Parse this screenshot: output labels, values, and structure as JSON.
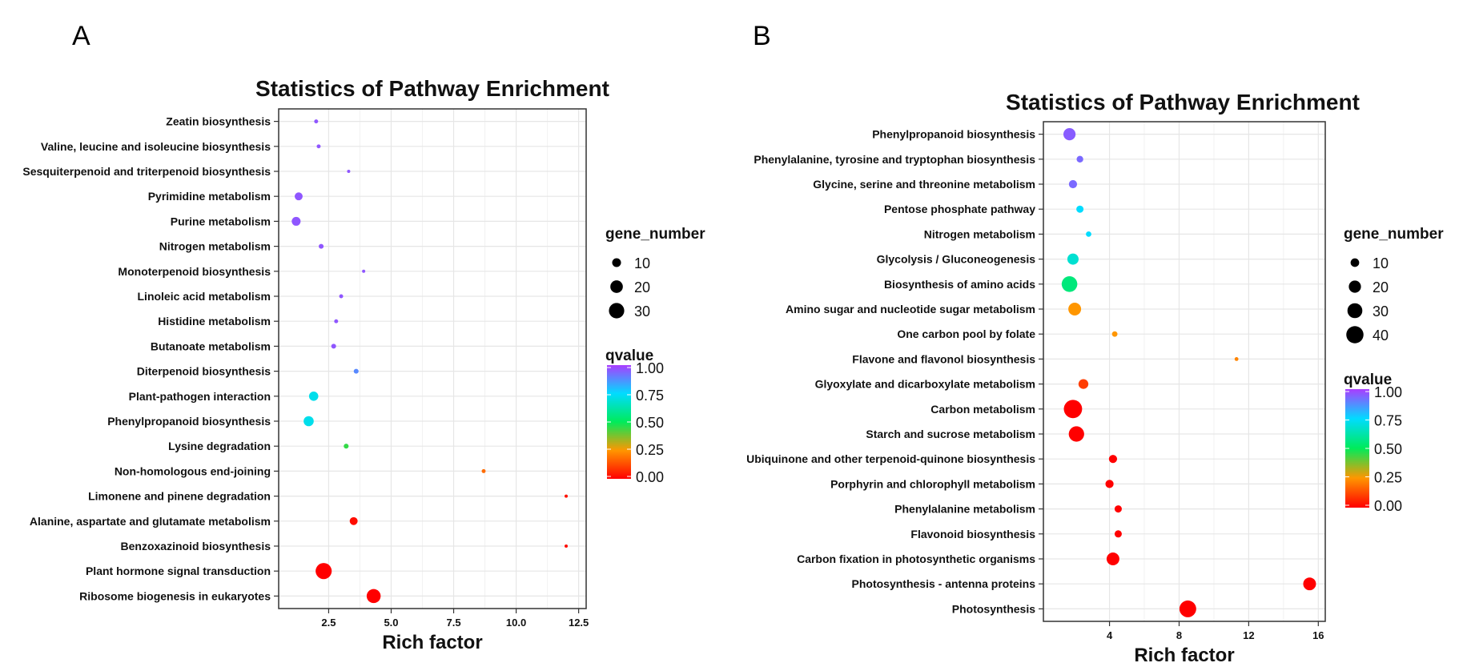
{
  "panels": [
    "A",
    "B"
  ],
  "chart_data": [
    {
      "type": "scatter",
      "title": "Statistics of Pathway Enrichment",
      "xlabel": "Rich factor",
      "xlim": [
        0.5,
        12.8
      ],
      "x_ticks": [
        "2.5",
        "5.0",
        "7.5",
        "10.0",
        "12.5"
      ],
      "x_tick_values": [
        2.5,
        5.0,
        7.5,
        10.0,
        12.5
      ],
      "grid": true,
      "legend_placement": "right",
      "size_legend": {
        "title": "gene_number",
        "values": [
          10,
          20,
          30
        ],
        "labels": [
          "10",
          "20",
          "30"
        ]
      },
      "color_legend": {
        "title": "qvalue",
        "labels": [
          "1.00",
          "0.75",
          "0.50",
          "0.25",
          "0.00"
        ]
      },
      "points": [
        {
          "label": "Zeatin biosynthesis",
          "x": 2.0,
          "gene_number": 2,
          "qvalue": 0.96
        },
        {
          "label": "Valine, leucine and isoleucine biosynthesis",
          "x": 2.1,
          "gene_number": 2,
          "qvalue": 0.96
        },
        {
          "label": "Sesquiterpenoid and triterpenoid biosynthesis",
          "x": 3.3,
          "gene_number": 1,
          "qvalue": 0.96
        },
        {
          "label": "Pyrimidine metabolism",
          "x": 1.3,
          "gene_number": 8,
          "qvalue": 0.96
        },
        {
          "label": "Purine metabolism",
          "x": 1.2,
          "gene_number": 10,
          "qvalue": 0.96
        },
        {
          "label": "Nitrogen metabolism",
          "x": 2.2,
          "gene_number": 3,
          "qvalue": 0.96
        },
        {
          "label": "Monoterpenoid biosynthesis",
          "x": 3.9,
          "gene_number": 1,
          "qvalue": 0.96
        },
        {
          "label": "Linoleic acid metabolism",
          "x": 3.0,
          "gene_number": 2,
          "qvalue": 0.96
        },
        {
          "label": "Histidine metabolism",
          "x": 2.8,
          "gene_number": 2,
          "qvalue": 0.96
        },
        {
          "label": "Butanoate metabolism",
          "x": 2.7,
          "gene_number": 3,
          "qvalue": 0.96
        },
        {
          "label": "Diterpenoid biosynthesis",
          "x": 3.6,
          "gene_number": 3,
          "qvalue": 0.88
        },
        {
          "label": "Plant-pathogen interaction",
          "x": 1.9,
          "gene_number": 11,
          "qvalue": 0.72
        },
        {
          "label": "Phenylpropanoid biosynthesis",
          "x": 1.7,
          "gene_number": 13,
          "qvalue": 0.72
        },
        {
          "label": "Lysine degradation",
          "x": 3.2,
          "gene_number": 3,
          "qvalue": 0.45
        },
        {
          "label": "Non-homologous end-joining",
          "x": 8.7,
          "gene_number": 2,
          "qvalue": 0.18
        },
        {
          "label": "Limonene and pinene degradation",
          "x": 12.0,
          "gene_number": 1,
          "qvalue": 0.03
        },
        {
          "label": "Alanine, aspartate and glutamate metabolism",
          "x": 3.5,
          "gene_number": 8,
          "qvalue": 0.02
        },
        {
          "label": "Benzoxazinoid biosynthesis",
          "x": 12.0,
          "gene_number": 1,
          "qvalue": 0.02
        },
        {
          "label": "Plant hormone signal transduction",
          "x": 2.3,
          "gene_number": 33,
          "qvalue": 0.0
        },
        {
          "label": "Ribosome biogenesis in eukaryotes",
          "x": 4.3,
          "gene_number": 25,
          "qvalue": 0.0
        }
      ]
    },
    {
      "type": "scatter",
      "title": "Statistics of Pathway Enrichment",
      "xlabel": "Rich factor",
      "xlim": [
        0.2,
        16.4
      ],
      "x_ticks": [
        "4",
        "8",
        "12",
        "16"
      ],
      "x_tick_values": [
        4,
        8,
        12,
        16
      ],
      "grid": true,
      "legend_placement": "right",
      "size_legend": {
        "title": "gene_number",
        "values": [
          10,
          20,
          30,
          40
        ],
        "labels": [
          "10",
          "20",
          "30",
          "40"
        ]
      },
      "color_legend": {
        "title": "qvalue",
        "labels": [
          "1.00",
          "0.75",
          "0.50",
          "0.25",
          "0.00"
        ]
      },
      "points": [
        {
          "label": "Phenylpropanoid biosynthesis",
          "x": 1.7,
          "gene_number": 20,
          "qvalue": 0.95
        },
        {
          "label": "Phenylalanine, tyrosine and tryptophan biosynthesis",
          "x": 2.3,
          "gene_number": 6,
          "qvalue": 0.93
        },
        {
          "label": "Glycine, serine and threonine metabolism",
          "x": 1.9,
          "gene_number": 9,
          "qvalue": 0.93
        },
        {
          "label": "Pentose phosphate pathway",
          "x": 2.3,
          "gene_number": 7,
          "qvalue": 0.75
        },
        {
          "label": "Nitrogen metabolism",
          "x": 2.8,
          "gene_number": 4,
          "qvalue": 0.75
        },
        {
          "label": "Glycolysis / Gluconeogenesis",
          "x": 1.9,
          "gene_number": 17,
          "qvalue": 0.68
        },
        {
          "label": "Biosynthesis of amino acids",
          "x": 1.7,
          "gene_number": 33,
          "qvalue": 0.55
        },
        {
          "label": "Amino sugar and nucleotide sugar metabolism",
          "x": 2.0,
          "gene_number": 22,
          "qvalue": 0.25
        },
        {
          "label": "One carbon pool by folate",
          "x": 4.3,
          "gene_number": 4,
          "qvalue": 0.25
        },
        {
          "label": "Flavone and flavonol biosynthesis",
          "x": 11.3,
          "gene_number": 2,
          "qvalue": 0.22
        },
        {
          "label": "Glyoxylate and dicarboxylate metabolism",
          "x": 2.5,
          "gene_number": 13,
          "qvalue": 0.1
        },
        {
          "label": "Carbon metabolism",
          "x": 1.9,
          "gene_number": 45,
          "qvalue": 0.0
        },
        {
          "label": "Starch and sucrose metabolism",
          "x": 2.1,
          "gene_number": 32,
          "qvalue": 0.0
        },
        {
          "label": "Ubiquinone and other terpenoid-quinone biosynthesis",
          "x": 4.2,
          "gene_number": 9,
          "qvalue": 0.0
        },
        {
          "label": "Porphyrin and chlorophyll metabolism",
          "x": 4.0,
          "gene_number": 9,
          "qvalue": 0.0
        },
        {
          "label": "Phenylalanine metabolism",
          "x": 4.5,
          "gene_number": 7,
          "qvalue": 0.0
        },
        {
          "label": "Flavonoid biosynthesis",
          "x": 4.5,
          "gene_number": 7,
          "qvalue": 0.0
        },
        {
          "label": "Carbon fixation in photosynthetic organisms",
          "x": 4.2,
          "gene_number": 22,
          "qvalue": 0.0
        },
        {
          "label": "Photosynthesis - antenna proteins",
          "x": 15.5,
          "gene_number": 22,
          "qvalue": 0.0
        },
        {
          "label": "Photosynthesis",
          "x": 8.5,
          "gene_number": 38,
          "qvalue": 0.0
        }
      ]
    }
  ]
}
